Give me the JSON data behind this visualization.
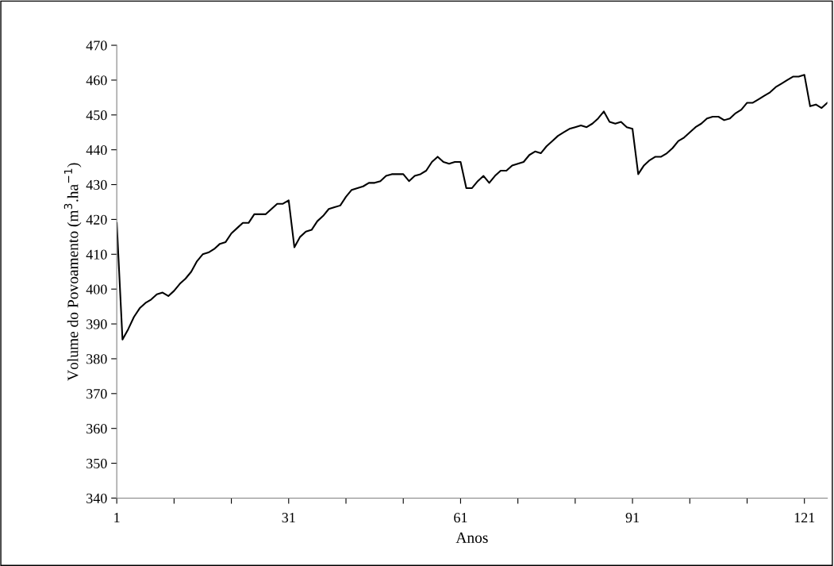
{
  "chart_data": {
    "type": "line",
    "xlabel": "Anos",
    "ylabel": "Volume do Povoamento (m$^{3}$.ha$^{−1}$)",
    "x": [
      1,
      2,
      3,
      4,
      5,
      6,
      7,
      8,
      9,
      10,
      11,
      12,
      13,
      14,
      15,
      16,
      17,
      18,
      19,
      20,
      21,
      22,
      23,
      24,
      25,
      26,
      27,
      28,
      29,
      30,
      31,
      32,
      33,
      34,
      35,
      36,
      37,
      38,
      39,
      40,
      41,
      42,
      43,
      44,
      45,
      46,
      47,
      48,
      49,
      50,
      51,
      52,
      53,
      54,
      55,
      56,
      57,
      58,
      59,
      60,
      61,
      62,
      63,
      64,
      65,
      66,
      67,
      68,
      69,
      70,
      71,
      72,
      73,
      74,
      75,
      76,
      77,
      78,
      79,
      80,
      81,
      82,
      83,
      84,
      85,
      86,
      87,
      88,
      89,
      90,
      91,
      92,
      93,
      94,
      95,
      96,
      97,
      98,
      99,
      100,
      101,
      102,
      103,
      104,
      105,
      106,
      107,
      108,
      109,
      110,
      111,
      112,
      113,
      114,
      115,
      116,
      117,
      118,
      119,
      120,
      121,
      122,
      123,
      124,
      125
    ],
    "series": [
      {
        "color": "#000000",
        "values": [
          419,
          385.5,
          388.5,
          392,
          394.5,
          396,
          397,
          398.5,
          399,
          398,
          399.5,
          401.5,
          403,
          405,
          408,
          410,
          410.5,
          411.5,
          413,
          413.5,
          416,
          417.5,
          419,
          419,
          421.5,
          421.5,
          421.5,
          423,
          424.5,
          424.5,
          425.5,
          412,
          415,
          416.5,
          417,
          419.5,
          421,
          423,
          423.5,
          424,
          426.5,
          428.5,
          429,
          429.5,
          430.5,
          430.5,
          431,
          432.5,
          433,
          433,
          433,
          431,
          432.5,
          433,
          434,
          436.5,
          438,
          436.5,
          436,
          436.5,
          436.5,
          429,
          429,
          431,
          432.5,
          430.5,
          432.5,
          434,
          434,
          435.5,
          436,
          436.5,
          438.5,
          439.5,
          439,
          441,
          442.5,
          444,
          445,
          446,
          446.5,
          447,
          446.5,
          447.5,
          449,
          451,
          448,
          447.5,
          448,
          446.5,
          446,
          433,
          435.5,
          437,
          438,
          438,
          439,
          440.5,
          442.5,
          443.5,
          445,
          446.5,
          447.5,
          449,
          449.5,
          449.5,
          448.5,
          449,
          450.5,
          451.5,
          453.5,
          453.5,
          454.5,
          455.5,
          456.5,
          458,
          459,
          460,
          461,
          461,
          461.5,
          452.5,
          453,
          452,
          453.5
        ]
      }
    ],
    "xlim": [
      1,
      125
    ],
    "xticks": [
      1,
      {
        "value": 11,
        "label": null
      },
      {
        "value": 21,
        "label": null
      },
      31,
      {
        "value": 41,
        "label": null
      },
      {
        "value": 51,
        "label": null
      },
      61,
      {
        "value": 71,
        "label": null
      },
      {
        "value": 81,
        "label": null
      },
      91,
      {
        "value": 101,
        "label": null
      },
      {
        "value": 111,
        "label": null
      },
      121
    ],
    "ylim": [
      340,
      470
    ],
    "yticks": [
      340,
      350,
      360,
      370,
      380,
      390,
      400,
      410,
      420,
      430,
      440,
      450,
      460,
      470
    ],
    "grid": false,
    "marker": "none",
    "line_style": "solid",
    "legend": false
  }
}
